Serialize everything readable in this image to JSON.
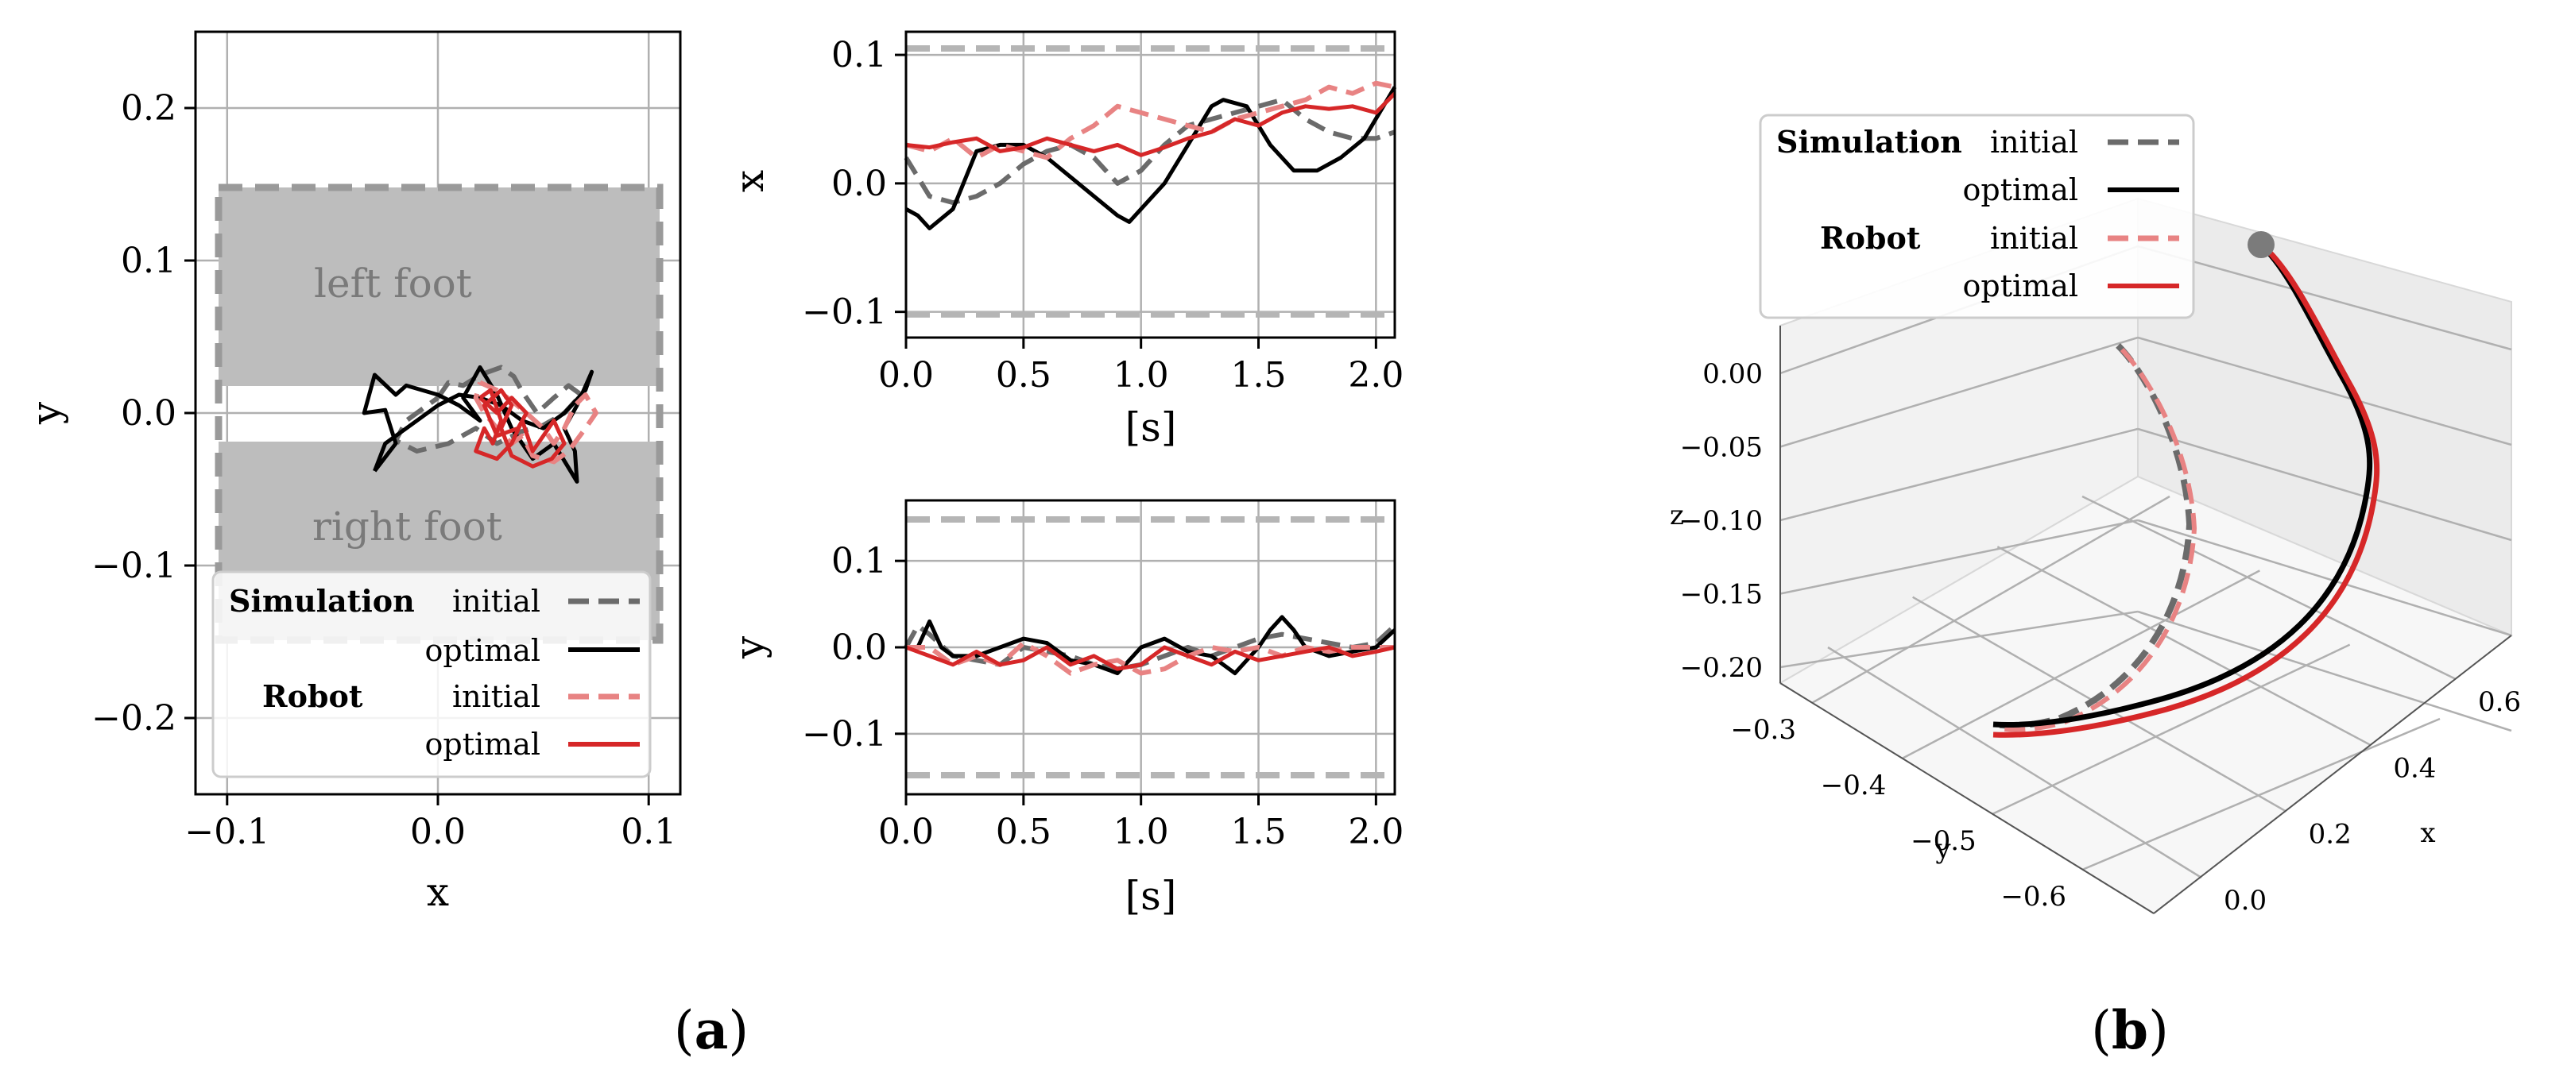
{
  "series_styles": {
    "sim_initial": {
      "color": "#6b6b6b",
      "dash": "dashed"
    },
    "sim_optimal": {
      "color": "#000000",
      "dash": "solid"
    },
    "rob_initial": {
      "color": "#e88383",
      "dash": "dashed"
    },
    "rob_optimal": {
      "color": "#d62728",
      "dash": "solid"
    }
  },
  "legend": {
    "simulation": "Simulation",
    "robot": "Robot",
    "initial": "initial",
    "optimal": "optimal"
  },
  "captions": {
    "a": "a",
    "b": "b"
  },
  "chart_data": [
    {
      "id": "xy",
      "type": "line",
      "title": "",
      "xlabel": "x",
      "ylabel": "y",
      "xlim": [
        -0.115,
        0.115
      ],
      "ylim": [
        -0.25,
        0.25
      ],
      "xticks": [
        -0.1,
        0.0,
        0.1
      ],
      "xtick_labels": [
        "−0.1",
        "0.0",
        "0.1"
      ],
      "yticks": [
        -0.2,
        -0.1,
        0.0,
        0.1,
        0.2
      ],
      "ytick_labels": [
        "−0.2",
        "−0.1",
        "0.0",
        "0.1",
        "0.2"
      ],
      "regions": [
        {
          "label": "left foot",
          "x": [
            -0.105,
            0.105
          ],
          "y": [
            0.018,
            0.148
          ]
        },
        {
          "label": "right foot",
          "x": [
            -0.105,
            0.105
          ],
          "y": [
            -0.148,
            -0.018
          ]
        }
      ],
      "bounds_rect": {
        "x": [
          -0.105,
          0.105
        ],
        "y": [
          -0.148,
          0.148
        ]
      },
      "legend_position": "lower-left",
      "series": [
        {
          "name": "Simulation initial",
          "style": "sim_initial",
          "points": [
            [
              0.0,
              0.01
            ],
            [
              0.005,
              0.02
            ],
            [
              0.012,
              0.018
            ],
            [
              0.02,
              0.025
            ],
            [
              0.03,
              0.03
            ],
            [
              0.036,
              0.024
            ],
            [
              0.04,
              0.014
            ],
            [
              0.047,
              0.0
            ],
            [
              0.055,
              0.01
            ],
            [
              0.062,
              0.018
            ],
            [
              0.068,
              0.012
            ],
            [
              0.06,
              0.0
            ],
            [
              0.05,
              -0.008
            ],
            [
              0.04,
              -0.012
            ],
            [
              0.028,
              -0.02
            ],
            [
              0.018,
              -0.01
            ],
            [
              0.005,
              -0.02
            ],
            [
              -0.01,
              -0.025
            ],
            [
              -0.02,
              -0.018
            ],
            [
              -0.015,
              -0.005
            ],
            [
              -0.005,
              0.005
            ],
            [
              0.0,
              0.01
            ]
          ]
        },
        {
          "name": "Simulation optimal",
          "style": "sim_optimal",
          "points": [
            [
              -0.03,
              -0.038
            ],
            [
              -0.025,
              -0.02
            ],
            [
              -0.01,
              -0.005
            ],
            [
              0.0,
              0.005
            ],
            [
              0.01,
              0.012
            ],
            [
              0.02,
              0.01
            ],
            [
              0.03,
              0.005
            ],
            [
              0.04,
              -0.005
            ],
            [
              0.05,
              -0.01
            ],
            [
              0.06,
              0.0
            ],
            [
              0.07,
              0.015
            ],
            [
              0.073,
              0.027
            ],
            [
              0.066,
              0.005
            ],
            [
              0.06,
              -0.01
            ],
            [
              0.065,
              -0.025
            ],
            [
              0.066,
              -0.045
            ],
            [
              0.055,
              -0.02
            ],
            [
              0.045,
              -0.03
            ],
            [
              0.035,
              -0.01
            ],
            [
              0.028,
              0.012
            ],
            [
              0.02,
              0.03
            ],
            [
              0.012,
              0.01
            ],
            [
              0.02,
              -0.005
            ],
            [
              0.01,
              0.005
            ],
            [
              0.0,
              0.012
            ],
            [
              -0.015,
              0.018
            ],
            [
              -0.02,
              0.012
            ],
            [
              -0.03,
              0.025
            ],
            [
              -0.035,
              0.0
            ],
            [
              -0.025,
              0.002
            ],
            [
              -0.02,
              -0.02
            ],
            [
              -0.03,
              -0.038
            ]
          ]
        },
        {
          "name": "Robot initial",
          "style": "rob_initial",
          "points": [
            [
              0.02,
              0.02
            ],
            [
              0.028,
              0.015
            ],
            [
              0.035,
              0.008
            ],
            [
              0.042,
              0.0
            ],
            [
              0.05,
              -0.01
            ],
            [
              0.055,
              -0.02
            ],
            [
              0.06,
              -0.01
            ],
            [
              0.065,
              0.005
            ],
            [
              0.07,
              0.012
            ],
            [
              0.075,
              0.0
            ],
            [
              0.07,
              -0.01
            ],
            [
              0.062,
              -0.025
            ],
            [
              0.055,
              -0.032
            ],
            [
              0.045,
              -0.028
            ],
            [
              0.04,
              -0.015
            ],
            [
              0.035,
              -0.02
            ],
            [
              0.028,
              -0.01
            ],
            [
              0.022,
              0.0
            ],
            [
              0.018,
              0.01
            ],
            [
              0.02,
              0.02
            ]
          ]
        },
        {
          "name": "Robot optimal",
          "style": "rob_optimal",
          "points": [
            [
              0.02,
              0.01
            ],
            [
              0.025,
              0.015
            ],
            [
              0.03,
              -0.005
            ],
            [
              0.026,
              -0.02
            ],
            [
              0.022,
              -0.01
            ],
            [
              0.018,
              -0.025
            ],
            [
              0.028,
              -0.03
            ],
            [
              0.035,
              -0.02
            ],
            [
              0.04,
              -0.005
            ],
            [
              0.045,
              -0.025
            ],
            [
              0.05,
              -0.015
            ],
            [
              0.055,
              -0.005
            ],
            [
              0.06,
              -0.02
            ],
            [
              0.054,
              -0.03
            ],
            [
              0.045,
              -0.035
            ],
            [
              0.035,
              -0.028
            ],
            [
              0.03,
              -0.01
            ],
            [
              0.035,
              0.005
            ],
            [
              0.03,
              0.015
            ],
            [
              0.022,
              0.005
            ],
            [
              0.028,
              -0.015
            ],
            [
              0.038,
              -0.01
            ],
            [
              0.042,
              0.0
            ],
            [
              0.035,
              0.01
            ],
            [
              0.028,
              0.0
            ],
            [
              0.02,
              0.01
            ]
          ]
        }
      ]
    },
    {
      "id": "xt",
      "type": "line",
      "xlabel": "[s]",
      "ylabel": "x",
      "xlim": [
        0.0,
        2.08
      ],
      "ylim": [
        -0.12,
        0.118
      ],
      "xticks": [
        0.0,
        0.5,
        1.0,
        1.5,
        2.0
      ],
      "xtick_labels": [
        "0.0",
        "0.5",
        "1.0",
        "1.5",
        "2.0"
      ],
      "yticks": [
        -0.1,
        0.0,
        0.1
      ],
      "ytick_labels": [
        "−0.1",
        "0.0",
        "0.1"
      ],
      "bounds": [
        -0.102,
        0.105
      ],
      "series": [
        {
          "name": "Simulation initial",
          "style": "sim_initial",
          "x": [
            0,
            0.1,
            0.2,
            0.3,
            0.4,
            0.5,
            0.6,
            0.7,
            0.8,
            0.9,
            1.0,
            1.1,
            1.2,
            1.3,
            1.4,
            1.5,
            1.6,
            1.7,
            1.8,
            1.9,
            2.0,
            2.08
          ],
          "y": [
            0.02,
            -0.01,
            -0.015,
            -0.01,
            0.0,
            0.015,
            0.025,
            0.03,
            0.02,
            0.0,
            0.01,
            0.03,
            0.045,
            0.05,
            0.055,
            0.06,
            0.065,
            0.05,
            0.04,
            0.035,
            0.035,
            0.04
          ]
        },
        {
          "name": "Simulation optimal",
          "style": "sim_optimal",
          "x": [
            0,
            0.05,
            0.1,
            0.2,
            0.3,
            0.4,
            0.5,
            0.6,
            0.7,
            0.8,
            0.9,
            0.95,
            1.0,
            1.1,
            1.2,
            1.3,
            1.35,
            1.45,
            1.55,
            1.65,
            1.75,
            1.85,
            1.95,
            2.08
          ],
          "y": [
            -0.02,
            -0.025,
            -0.035,
            -0.02,
            0.025,
            0.03,
            0.03,
            0.02,
            0.005,
            -0.01,
            -0.025,
            -0.03,
            -0.02,
            0.0,
            0.03,
            0.06,
            0.065,
            0.06,
            0.03,
            0.01,
            0.01,
            0.02,
            0.035,
            0.075
          ]
        },
        {
          "name": "Robot initial",
          "style": "rob_initial",
          "x": [
            0,
            0.1,
            0.2,
            0.3,
            0.4,
            0.5,
            0.6,
            0.7,
            0.8,
            0.9,
            1.0,
            1.1,
            1.2,
            1.3,
            1.4,
            1.5,
            1.6,
            1.7,
            1.8,
            1.9,
            2.0,
            2.08
          ],
          "y": [
            0.03,
            0.025,
            0.035,
            0.02,
            0.03,
            0.025,
            0.02,
            0.035,
            0.045,
            0.06,
            0.055,
            0.05,
            0.045,
            0.04,
            0.05,
            0.055,
            0.06,
            0.065,
            0.075,
            0.07,
            0.078,
            0.075
          ]
        },
        {
          "name": "Robot optimal",
          "style": "rob_optimal",
          "x": [
            0,
            0.1,
            0.2,
            0.3,
            0.4,
            0.5,
            0.6,
            0.7,
            0.8,
            0.9,
            1.0,
            1.1,
            1.2,
            1.3,
            1.4,
            1.5,
            1.6,
            1.7,
            1.8,
            1.9,
            2.0,
            2.08
          ],
          "y": [
            0.03,
            0.028,
            0.032,
            0.035,
            0.025,
            0.028,
            0.035,
            0.03,
            0.025,
            0.03,
            0.022,
            0.028,
            0.035,
            0.04,
            0.05,
            0.045,
            0.055,
            0.06,
            0.058,
            0.06,
            0.055,
            0.07
          ]
        }
      ]
    },
    {
      "id": "yt",
      "type": "line",
      "xlabel": "[s]",
      "ylabel": "y",
      "xlim": [
        0.0,
        2.08
      ],
      "ylim": [
        -0.17,
        0.17
      ],
      "xticks": [
        0.0,
        0.5,
        1.0,
        1.5,
        2.0
      ],
      "xtick_labels": [
        "0.0",
        "0.5",
        "1.0",
        "1.5",
        "2.0"
      ],
      "yticks": [
        -0.1,
        0.0,
        0.1
      ],
      "ytick_labels": [
        "−0.1",
        "0.0",
        "0.1"
      ],
      "bounds": [
        -0.148,
        0.148
      ],
      "series": [
        {
          "name": "Simulation initial",
          "style": "sim_initial",
          "x": [
            0,
            0.05,
            0.1,
            0.2,
            0.3,
            0.4,
            0.5,
            0.6,
            0.7,
            0.8,
            0.9,
            1.0,
            1.1,
            1.2,
            1.3,
            1.4,
            1.5,
            1.6,
            1.7,
            1.8,
            1.9,
            2.0,
            2.08
          ],
          "y": [
            0.0,
            0.025,
            0.015,
            -0.01,
            -0.015,
            -0.02,
            0.0,
            -0.005,
            -0.01,
            -0.02,
            -0.025,
            -0.02,
            -0.01,
            0.0,
            -0.01,
            0.0,
            0.01,
            0.015,
            0.01,
            0.005,
            0.0,
            0.005,
            0.025
          ]
        },
        {
          "name": "Simulation optimal",
          "style": "sim_optimal",
          "x": [
            0,
            0.05,
            0.1,
            0.15,
            0.2,
            0.3,
            0.4,
            0.5,
            0.6,
            0.7,
            0.8,
            0.9,
            1.0,
            1.1,
            1.2,
            1.3,
            1.4,
            1.5,
            1.55,
            1.6,
            1.65,
            1.7,
            1.8,
            1.9,
            2.0,
            2.08
          ],
          "y": [
            0.0,
            0.0,
            0.03,
            0.0,
            -0.01,
            -0.01,
            0.0,
            0.01,
            0.005,
            -0.015,
            -0.02,
            -0.03,
            0.0,
            0.01,
            -0.005,
            -0.01,
            -0.03,
            0.0,
            0.02,
            0.035,
            0.02,
            0.0,
            -0.01,
            -0.005,
            0.0,
            0.02
          ]
        },
        {
          "name": "Robot initial",
          "style": "rob_initial",
          "x": [
            0,
            0.1,
            0.2,
            0.3,
            0.4,
            0.5,
            0.6,
            0.7,
            0.8,
            0.9,
            1.0,
            1.1,
            1.2,
            1.3,
            1.4,
            1.5,
            1.6,
            1.7,
            1.8,
            1.9,
            2.0,
            2.08
          ],
          "y": [
            0.0,
            0.0,
            -0.02,
            -0.01,
            -0.02,
            0.005,
            -0.01,
            -0.03,
            -0.02,
            -0.015,
            -0.03,
            -0.025,
            -0.01,
            0.0,
            -0.005,
            0.0,
            -0.01,
            0.0,
            -0.005,
            0.0,
            0.0,
            0.0
          ]
        },
        {
          "name": "Robot optimal",
          "style": "rob_optimal",
          "x": [
            0,
            0.1,
            0.2,
            0.3,
            0.4,
            0.5,
            0.6,
            0.7,
            0.8,
            0.9,
            1.0,
            1.1,
            1.2,
            1.3,
            1.4,
            1.5,
            1.6,
            1.7,
            1.8,
            1.9,
            2.0,
            2.08
          ],
          "y": [
            0.0,
            -0.01,
            -0.02,
            -0.005,
            -0.02,
            -0.015,
            0.0,
            -0.02,
            -0.01,
            -0.025,
            -0.02,
            0.0,
            -0.01,
            -0.02,
            -0.005,
            -0.015,
            -0.01,
            -0.005,
            0.0,
            -0.01,
            -0.005,
            0.0
          ]
        }
      ]
    },
    {
      "id": "traj3d",
      "type": "line",
      "projection": "3d",
      "xlabel": "x",
      "ylabel": "y",
      "zlabel": "z",
      "xticks": [
        0.0,
        0.2,
        0.4,
        0.6
      ],
      "xtick_labels": [
        "0.0",
        "0.2",
        "0.4",
        "0.6"
      ],
      "yticks": [
        -0.3,
        -0.4,
        -0.5,
        -0.6
      ],
      "ytick_labels": [
        "−0.3",
        "−0.4",
        "−0.5",
        "−0.6"
      ],
      "zticks": [
        0.0,
        -0.05,
        -0.1,
        -0.15,
        -0.2
      ],
      "ztick_labels": [
        "0.00",
        "−0.05",
        "−0.10",
        "−0.15",
        "−0.20"
      ],
      "start_marker": "grey circle at start of optimal trajectories",
      "legend_position": "top-left",
      "series": [
        {
          "name": "Simulation initial",
          "style": "sim_initial",
          "trace_id": "init"
        },
        {
          "name": "Robot initial",
          "style": "rob_initial",
          "trace_id": "init"
        },
        {
          "name": "Simulation optimal",
          "style": "sim_optimal",
          "trace_id": "opt"
        },
        {
          "name": "Robot optimal",
          "style": "rob_optimal",
          "trace_id": "opt"
        }
      ]
    }
  ]
}
